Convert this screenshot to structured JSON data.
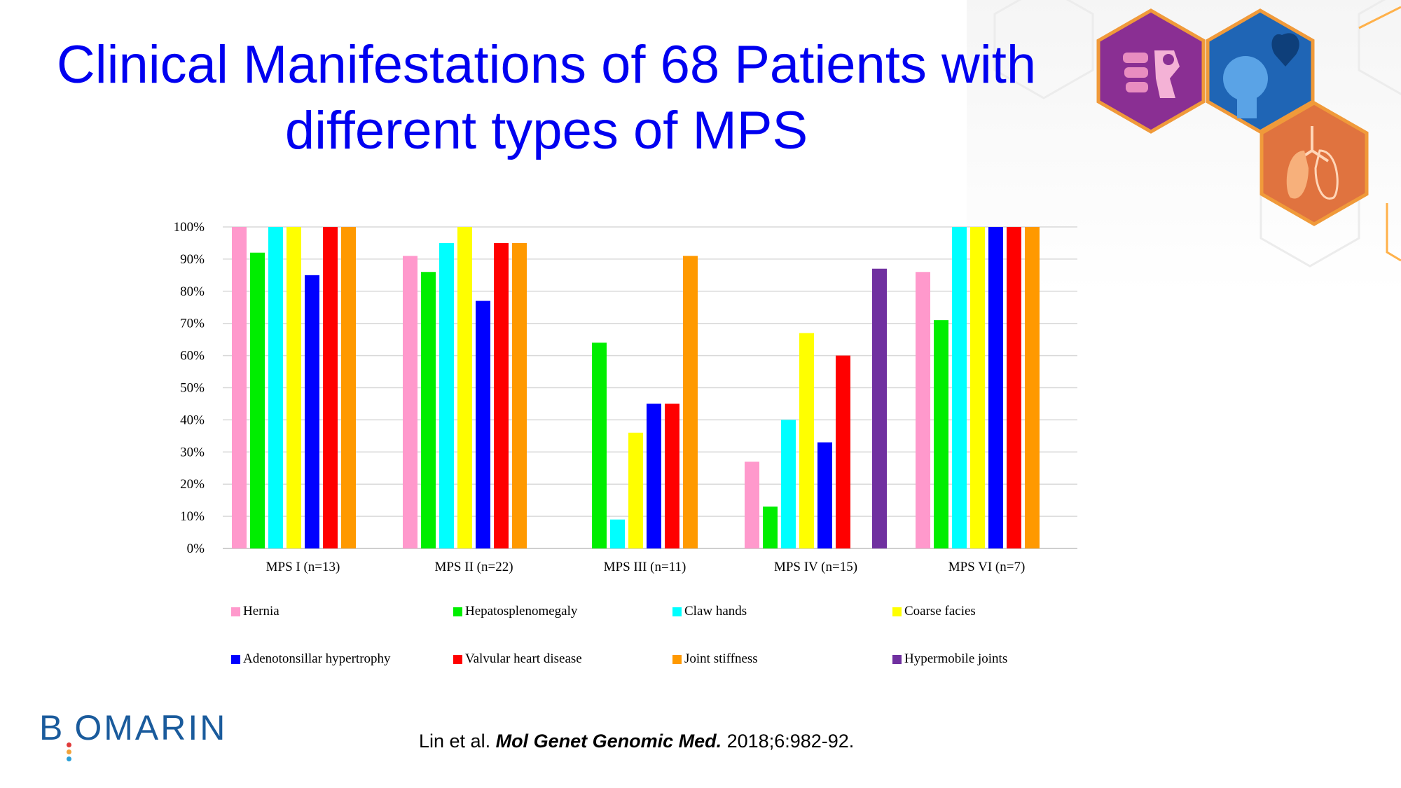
{
  "slide": {
    "title_line1": "Clinical Manifestations of 68 Patients with",
    "title_line2": "different types of MPS",
    "logo_text": "BIOMARIN",
    "citation_authors": "Lin et al. ",
    "citation_journal": "Mol Genet Genomic Med.",
    "citation_details": " 2018;6:982-92."
  },
  "icons": [
    "skeleton-icon",
    "head-heart-icon",
    "lungs-icon"
  ],
  "chart_data": {
    "type": "bar",
    "title": "",
    "xlabel": "",
    "ylabel": "",
    "ylim": [
      0,
      100
    ],
    "ytick_labels": [
      "0%",
      "10%",
      "20%",
      "30%",
      "40%",
      "50%",
      "60%",
      "70%",
      "80%",
      "90%",
      "100%"
    ],
    "grid": true,
    "legend_position": "bottom",
    "categories": [
      "MPS I (n=13)",
      "MPS II (n=22)",
      "MPS III (n=11)",
      "MPS IV (n=15)",
      "MPS VI (n=7)"
    ],
    "series": [
      {
        "name": "Hernia",
        "color": "#ff99cc",
        "values": [
          100,
          91,
          null,
          27,
          86
        ]
      },
      {
        "name": "Hepatosplenomegaly",
        "color": "#00ee00",
        "values": [
          92,
          86,
          64,
          13,
          71
        ]
      },
      {
        "name": "Claw hands",
        "color": "#00ffff",
        "values": [
          100,
          95,
          9,
          40,
          100
        ]
      },
      {
        "name": "Coarse facies",
        "color": "#ffff00",
        "values": [
          100,
          100,
          36,
          67,
          100
        ]
      },
      {
        "name": "Adenotonsillar hypertrophy",
        "color": "#0000ff",
        "values": [
          85,
          77,
          45,
          33,
          100
        ]
      },
      {
        "name": "Valvular heart disease",
        "color": "#ff0000",
        "values": [
          100,
          95,
          45,
          60,
          100
        ]
      },
      {
        "name": "Joint stiffness",
        "color": "#ff9900",
        "values": [
          100,
          95,
          91,
          null,
          100
        ]
      },
      {
        "name": "Hypermobile joints",
        "color": "#7030a0",
        "values": [
          null,
          null,
          null,
          87,
          null
        ]
      }
    ]
  }
}
